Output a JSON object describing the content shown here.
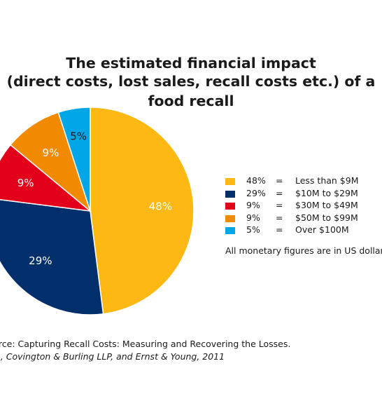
{
  "chart_data": {
    "type": "pie",
    "title_line_1": "The estimated financial impact",
    "title_line_2": "(direct costs, lost sales, recall costs etc.) of a food recall",
    "slices": [
      {
        "label": "Less than $9M",
        "value": 48,
        "pct_label": "48%",
        "color": "#FDB813",
        "text_color": "#ffffff"
      },
      {
        "label": "$10M to $29M",
        "value": 29,
        "pct_label": "29%",
        "color": "#002F6C",
        "text_color": "#ffffff"
      },
      {
        "label": "$30M to $49M",
        "value": 9,
        "pct_label": "9%",
        "color": "#E2001A",
        "text_color": "#ffffff"
      },
      {
        "label": "$50M to $99M",
        "value": 9,
        "pct_label": "9%",
        "color": "#F28A00",
        "text_color": "#ffffff"
      },
      {
        "label": "Over $100M",
        "value": 5,
        "pct_label": "5%",
        "color": "#00A6E6",
        "text_color": "#1a1a1a"
      }
    ],
    "legend_equals": "=",
    "note": "All monetary figures are in US dollars",
    "legend_position": "right"
  },
  "source": {
    "line_1": "urce: Capturing Recall Costs: Measuring and Recovering the Losses.",
    "line_2": "A, Covington & Burling LLP, and Ernst & Young, 2011"
  }
}
